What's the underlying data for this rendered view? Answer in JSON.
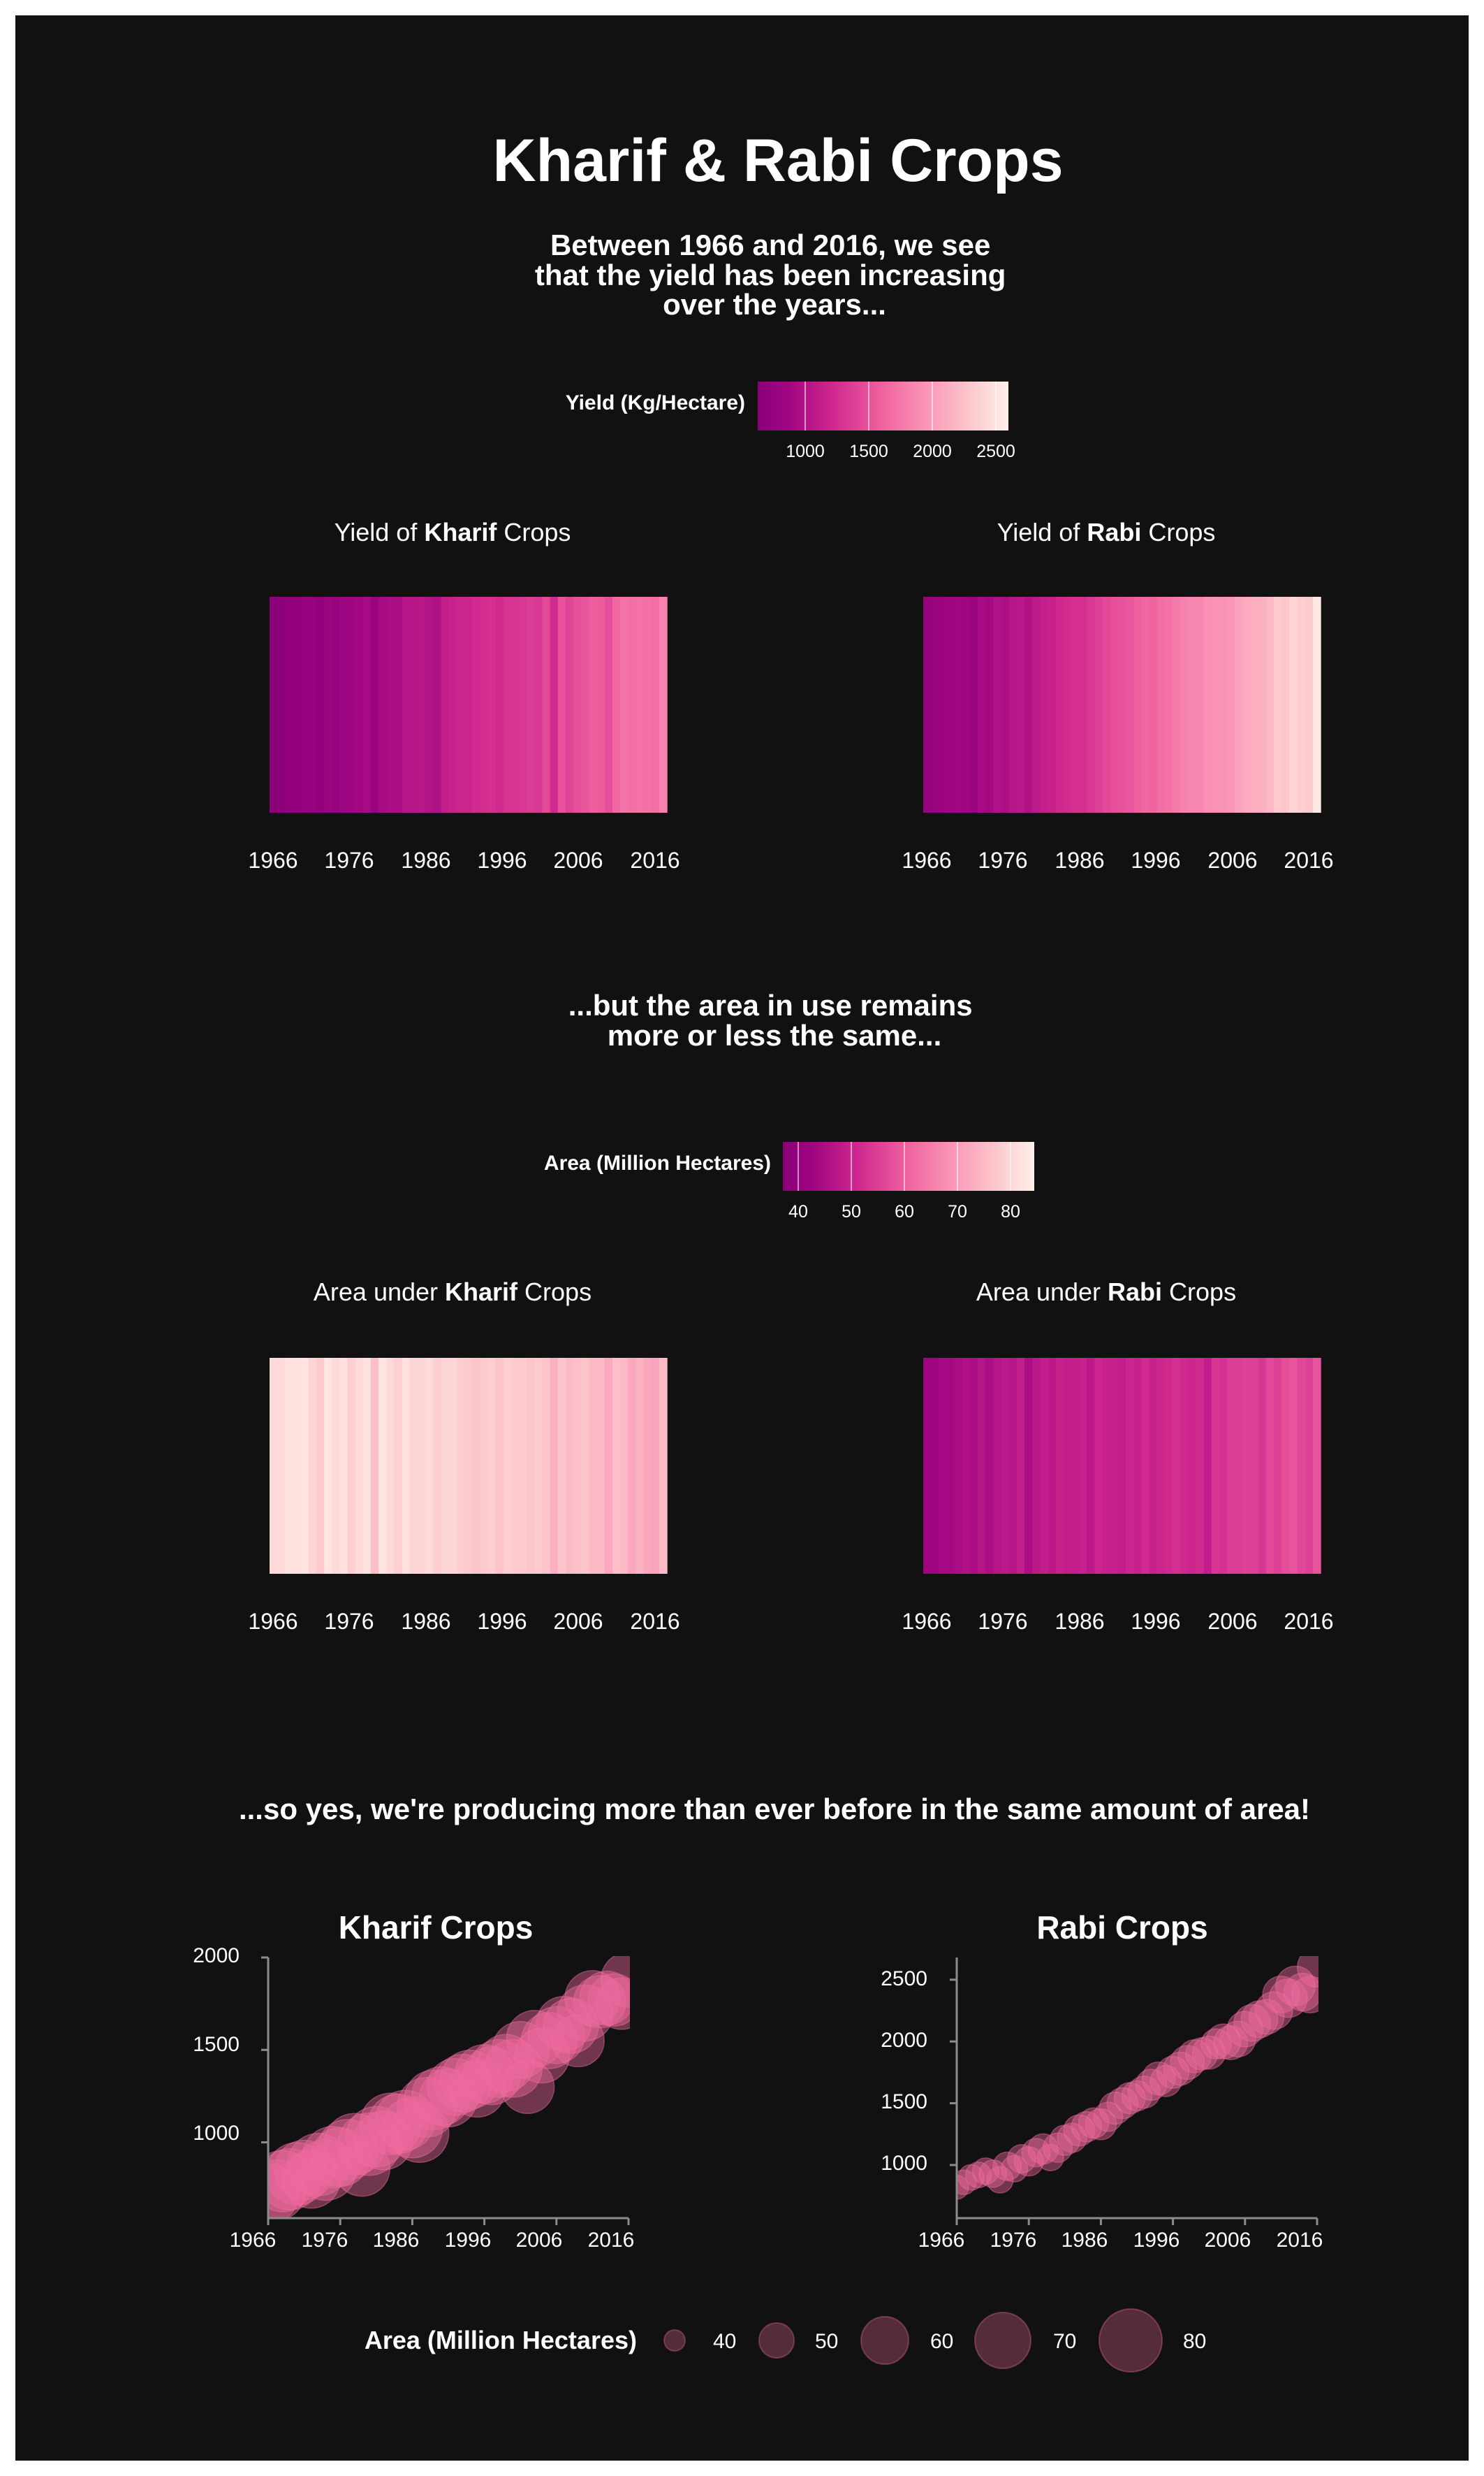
{
  "title": "Kharif & Rabi Crops",
  "yield_section": {
    "caption_lines": [
      "Between 1966 and 2016, we see",
      "that the yield has been increasing",
      "over the years..."
    ],
    "legend_title": "Yield (Kg/Hectare)",
    "legend_ticks": [
      "1000",
      "1500",
      "2000",
      "2500"
    ]
  },
  "area_section": {
    "caption_lines": [
      "...but the area in use remains",
      "more or less the same..."
    ],
    "legend_title": "Area (Million Hectares)",
    "legend_ticks": [
      "40",
      "50",
      "60",
      "70",
      "80"
    ]
  },
  "scatter_section": {
    "caption": "...so yes, we're producing more than ever before in the same amount of area!",
    "size_legend_title": "Area (Million Hectares)",
    "size_legend_labels": [
      "40",
      "50",
      "60",
      "70",
      "80"
    ]
  },
  "colors": {
    "background": "#121112",
    "text": "#ffffff",
    "ramp_low": "#8a0079",
    "ramp_high": "#fff0ea",
    "bubble": "#f06c9f"
  },
  "chart_data": [
    {
      "id": "yield_kharif",
      "type": "heatmap",
      "title_prefix": "Yield of ",
      "title_bold": "Kharif",
      "title_suffix": " Crops",
      "x_ticks": [
        "1966",
        "1976",
        "1986",
        "1996",
        "2006",
        "2016"
      ],
      "x": [
        1966,
        1967,
        1968,
        1969,
        1970,
        1971,
        1972,
        1973,
        1974,
        1975,
        1976,
        1977,
        1978,
        1979,
        1980,
        1981,
        1982,
        1983,
        1984,
        1985,
        1986,
        1987,
        1988,
        1989,
        1990,
        1991,
        1992,
        1993,
        1994,
        1995,
        1996,
        1997,
        1998,
        1999,
        2000,
        2001,
        2002,
        2003,
        2004,
        2005,
        2006,
        2007,
        2008,
        2009,
        2010,
        2011,
        2012,
        2013,
        2014,
        2015,
        2016
      ],
      "values": [
        720,
        740,
        790,
        800,
        830,
        850,
        800,
        880,
        850,
        920,
        920,
        960,
        990,
        860,
        990,
        1030,
        1010,
        1100,
        1100,
        1120,
        1080,
        1050,
        1190,
        1230,
        1250,
        1240,
        1300,
        1320,
        1340,
        1290,
        1370,
        1360,
        1400,
        1430,
        1400,
        1500,
        1300,
        1560,
        1470,
        1550,
        1580,
        1640,
        1630,
        1550,
        1700,
        1780,
        1760,
        1780,
        1770,
        1750,
        1880
      ],
      "color_domain": [
        700,
        2650
      ]
    },
    {
      "id": "yield_rabi",
      "type": "heatmap",
      "title_prefix": "Yield of ",
      "title_bold": "Rabi",
      "title_suffix": " Crops",
      "x_ticks": [
        "1966",
        "1976",
        "1986",
        "1996",
        "2006",
        "2016"
      ],
      "x": [
        1966,
        1967,
        1968,
        1969,
        1970,
        1971,
        1972,
        1973,
        1974,
        1975,
        1976,
        1977,
        1978,
        1979,
        1980,
        1981,
        1982,
        1983,
        1984,
        1985,
        1986,
        1987,
        1988,
        1989,
        1990,
        1991,
        1992,
        1993,
        1994,
        1995,
        1996,
        1997,
        1998,
        1999,
        2000,
        2001,
        2002,
        2003,
        2004,
        2005,
        2006,
        2007,
        2008,
        2009,
        2010,
        2011,
        2012,
        2013,
        2014,
        2015,
        2016
      ],
      "values": [
        820,
        860,
        900,
        920,
        950,
        930,
        880,
        990,
        970,
        1050,
        1030,
        1100,
        1130,
        1060,
        1140,
        1200,
        1220,
        1280,
        1310,
        1340,
        1330,
        1390,
        1460,
        1500,
        1540,
        1560,
        1590,
        1650,
        1700,
        1680,
        1750,
        1780,
        1830,
        1880,
        1900,
        1910,
        1980,
        2000,
        1990,
        2020,
        2100,
        2150,
        2180,
        2200,
        2250,
        2380,
        2350,
        2450,
        2400,
        2380,
        2600
      ],
      "color_domain": [
        700,
        2650
      ]
    },
    {
      "id": "area_kharif",
      "type": "heatmap",
      "title_prefix": "Area under ",
      "title_bold": "Kharif",
      "title_suffix": " Crops",
      "x_ticks": [
        "1966",
        "1976",
        "1986",
        "1996",
        "2006",
        "2016"
      ],
      "x": [
        1966,
        1967,
        1968,
        1969,
        1970,
        1971,
        1972,
        1973,
        1974,
        1975,
        1976,
        1977,
        1978,
        1979,
        1980,
        1981,
        1982,
        1983,
        1984,
        1985,
        1986,
        1987,
        1988,
        1989,
        1990,
        1991,
        1992,
        1993,
        1994,
        1995,
        1996,
        1997,
        1998,
        1999,
        2000,
        2001,
        2002,
        2003,
        2004,
        2005,
        2006,
        2007,
        2008,
        2009,
        2010,
        2011,
        2012,
        2013,
        2014,
        2015,
        2016
      ],
      "values": [
        81,
        81,
        82,
        82,
        83,
        80,
        78,
        83,
        81,
        82,
        79,
        81,
        82,
        76,
        83,
        81,
        79,
        82,
        80,
        80,
        81,
        79,
        80,
        80,
        79,
        78,
        77,
        78,
        79,
        77,
        79,
        78,
        78,
        77,
        78,
        77,
        73,
        77,
        75,
        76,
        77,
        75,
        75,
        72,
        76,
        75,
        72,
        74,
        72,
        71,
        75
      ],
      "color_domain": [
        36,
        85
      ]
    },
    {
      "id": "area_rabi",
      "type": "heatmap",
      "title_prefix": "Area under ",
      "title_bold": "Rabi",
      "title_suffix": " Crops",
      "x_ticks": [
        "1966",
        "1976",
        "1986",
        "1996",
        "2006",
        "2016"
      ],
      "x": [
        1966,
        1967,
        1968,
        1969,
        1970,
        1971,
        1972,
        1973,
        1974,
        1975,
        1976,
        1977,
        1978,
        1979,
        1980,
        1981,
        1982,
        1983,
        1984,
        1985,
        1986,
        1987,
        1988,
        1989,
        1990,
        1991,
        1992,
        1993,
        1994,
        1995,
        1996,
        1997,
        1998,
        1999,
        2000,
        2001,
        2002,
        2003,
        2004,
        2005,
        2006,
        2007,
        2008,
        2009,
        2010,
        2011,
        2012,
        2013,
        2014,
        2015,
        2016
      ],
      "values": [
        41,
        42,
        43,
        43,
        44,
        45,
        44,
        46,
        44,
        46,
        47,
        46,
        48,
        44,
        47,
        48,
        47,
        49,
        48,
        48,
        49,
        47,
        50,
        49,
        49,
        48,
        50,
        49,
        51,
        49,
        50,
        51,
        52,
        51,
        50,
        51,
        48,
        53,
        52,
        54,
        54,
        55,
        55,
        53,
        56,
        55,
        57,
        58,
        56,
        55,
        58
      ],
      "color_domain": [
        36,
        85
      ]
    },
    {
      "id": "scatter_kharif",
      "type": "scatter",
      "title": "Kharif Crops",
      "x_ticks": [
        "1966",
        "1976",
        "1986",
        "1996",
        "2006",
        "2016"
      ],
      "y_ticks": [
        "1000",
        "1500",
        "2000"
      ],
      "xlim": [
        1966,
        2016
      ],
      "ylim": [
        590,
        2000
      ],
      "size_domain": [
        35,
        85
      ],
      "points": [
        {
          "x": 1966,
          "y": 720,
          "area": 81
        },
        {
          "x": 1967,
          "y": 740,
          "area": 81
        },
        {
          "x": 1968,
          "y": 790,
          "area": 82
        },
        {
          "x": 1969,
          "y": 800,
          "area": 82
        },
        {
          "x": 1970,
          "y": 830,
          "area": 83
        },
        {
          "x": 1971,
          "y": 850,
          "area": 80
        },
        {
          "x": 1972,
          "y": 800,
          "area": 78
        },
        {
          "x": 1973,
          "y": 880,
          "area": 83
        },
        {
          "x": 1974,
          "y": 850,
          "area": 81
        },
        {
          "x": 1975,
          "y": 920,
          "area": 82
        },
        {
          "x": 1976,
          "y": 920,
          "area": 79
        },
        {
          "x": 1977,
          "y": 960,
          "area": 81
        },
        {
          "x": 1978,
          "y": 990,
          "area": 82
        },
        {
          "x": 1979,
          "y": 860,
          "area": 76
        },
        {
          "x": 1980,
          "y": 990,
          "area": 83
        },
        {
          "x": 1981,
          "y": 1030,
          "area": 81
        },
        {
          "x": 1982,
          "y": 1010,
          "area": 79
        },
        {
          "x": 1983,
          "y": 1100,
          "area": 82
        },
        {
          "x": 1984,
          "y": 1100,
          "area": 80
        },
        {
          "x": 1985,
          "y": 1120,
          "area": 80
        },
        {
          "x": 1986,
          "y": 1080,
          "area": 81
        },
        {
          "x": 1987,
          "y": 1050,
          "area": 79
        },
        {
          "x": 1988,
          "y": 1190,
          "area": 80
        },
        {
          "x": 1989,
          "y": 1230,
          "area": 80
        },
        {
          "x": 1990,
          "y": 1250,
          "area": 79
        },
        {
          "x": 1991,
          "y": 1240,
          "area": 78
        },
        {
          "x": 1992,
          "y": 1300,
          "area": 77
        },
        {
          "x": 1993,
          "y": 1320,
          "area": 78
        },
        {
          "x": 1994,
          "y": 1340,
          "area": 79
        },
        {
          "x": 1995,
          "y": 1290,
          "area": 77
        },
        {
          "x": 1996,
          "y": 1370,
          "area": 79
        },
        {
          "x": 1997,
          "y": 1360,
          "area": 78
        },
        {
          "x": 1998,
          "y": 1400,
          "area": 78
        },
        {
          "x": 1999,
          "y": 1430,
          "area": 77
        },
        {
          "x": 2000,
          "y": 1400,
          "area": 78
        },
        {
          "x": 2001,
          "y": 1500,
          "area": 77
        },
        {
          "x": 2002,
          "y": 1300,
          "area": 73
        },
        {
          "x": 2003,
          "y": 1560,
          "area": 77
        },
        {
          "x": 2004,
          "y": 1470,
          "area": 75
        },
        {
          "x": 2005,
          "y": 1550,
          "area": 76
        },
        {
          "x": 2006,
          "y": 1580,
          "area": 77
        },
        {
          "x": 2007,
          "y": 1640,
          "area": 75
        },
        {
          "x": 2008,
          "y": 1630,
          "area": 75
        },
        {
          "x": 2009,
          "y": 1550,
          "area": 72
        },
        {
          "x": 2010,
          "y": 1700,
          "area": 76
        },
        {
          "x": 2011,
          "y": 1780,
          "area": 75
        },
        {
          "x": 2012,
          "y": 1760,
          "area": 72
        },
        {
          "x": 2013,
          "y": 1780,
          "area": 74
        },
        {
          "x": 2014,
          "y": 1770,
          "area": 72
        },
        {
          "x": 2015,
          "y": 1750,
          "area": 71
        },
        {
          "x": 2016,
          "y": 1880,
          "area": 75
        }
      ]
    },
    {
      "id": "scatter_rabi",
      "type": "scatter",
      "title": "Rabi Crops",
      "x_ticks": [
        "1966",
        "1976",
        "1986",
        "1996",
        "2006",
        "2016"
      ],
      "y_ticks": [
        "1000",
        "1500",
        "2000",
        "2500"
      ],
      "xlim": [
        1966,
        2016
      ],
      "ylim": [
        570,
        2680
      ],
      "size_domain": [
        35,
        85
      ],
      "points": [
        {
          "x": 1966,
          "y": 820,
          "area": 41
        },
        {
          "x": 1967,
          "y": 860,
          "area": 42
        },
        {
          "x": 1968,
          "y": 900,
          "area": 43
        },
        {
          "x": 1969,
          "y": 920,
          "area": 43
        },
        {
          "x": 1970,
          "y": 950,
          "area": 44
        },
        {
          "x": 1971,
          "y": 930,
          "area": 45
        },
        {
          "x": 1972,
          "y": 880,
          "area": 44
        },
        {
          "x": 1973,
          "y": 990,
          "area": 46
        },
        {
          "x": 1974,
          "y": 970,
          "area": 44
        },
        {
          "x": 1975,
          "y": 1050,
          "area": 46
        },
        {
          "x": 1976,
          "y": 1030,
          "area": 47
        },
        {
          "x": 1977,
          "y": 1100,
          "area": 46
        },
        {
          "x": 1978,
          "y": 1130,
          "area": 48
        },
        {
          "x": 1979,
          "y": 1060,
          "area": 44
        },
        {
          "x": 1980,
          "y": 1140,
          "area": 47
        },
        {
          "x": 1981,
          "y": 1200,
          "area": 48
        },
        {
          "x": 1982,
          "y": 1220,
          "area": 47
        },
        {
          "x": 1983,
          "y": 1280,
          "area": 49
        },
        {
          "x": 1984,
          "y": 1310,
          "area": 48
        },
        {
          "x": 1985,
          "y": 1340,
          "area": 48
        },
        {
          "x": 1986,
          "y": 1330,
          "area": 49
        },
        {
          "x": 1987,
          "y": 1390,
          "area": 47
        },
        {
          "x": 1988,
          "y": 1460,
          "area": 50
        },
        {
          "x": 1989,
          "y": 1500,
          "area": 49
        },
        {
          "x": 1990,
          "y": 1540,
          "area": 49
        },
        {
          "x": 1991,
          "y": 1560,
          "area": 48
        },
        {
          "x": 1992,
          "y": 1590,
          "area": 50
        },
        {
          "x": 1993,
          "y": 1650,
          "area": 49
        },
        {
          "x": 1994,
          "y": 1700,
          "area": 51
        },
        {
          "x": 1995,
          "y": 1680,
          "area": 49
        },
        {
          "x": 1996,
          "y": 1750,
          "area": 50
        },
        {
          "x": 1997,
          "y": 1780,
          "area": 51
        },
        {
          "x": 1998,
          "y": 1830,
          "area": 52
        },
        {
          "x": 1999,
          "y": 1880,
          "area": 51
        },
        {
          "x": 2000,
          "y": 1900,
          "area": 50
        },
        {
          "x": 2001,
          "y": 1910,
          "area": 51
        },
        {
          "x": 2002,
          "y": 1980,
          "area": 48
        },
        {
          "x": 2003,
          "y": 2000,
          "area": 53
        },
        {
          "x": 2004,
          "y": 1990,
          "area": 52
        },
        {
          "x": 2005,
          "y": 2020,
          "area": 54
        },
        {
          "x": 2006,
          "y": 2100,
          "area": 54
        },
        {
          "x": 2007,
          "y": 2150,
          "area": 55
        },
        {
          "x": 2008,
          "y": 2180,
          "area": 55
        },
        {
          "x": 2009,
          "y": 2200,
          "area": 53
        },
        {
          "x": 2010,
          "y": 2250,
          "area": 56
        },
        {
          "x": 2011,
          "y": 2380,
          "area": 55
        },
        {
          "x": 2012,
          "y": 2350,
          "area": 57
        },
        {
          "x": 2013,
          "y": 2450,
          "area": 58
        },
        {
          "x": 2014,
          "y": 2400,
          "area": 56
        },
        {
          "x": 2015,
          "y": 2380,
          "area": 55
        },
        {
          "x": 2016,
          "y": 2600,
          "area": 58
        }
      ]
    }
  ]
}
